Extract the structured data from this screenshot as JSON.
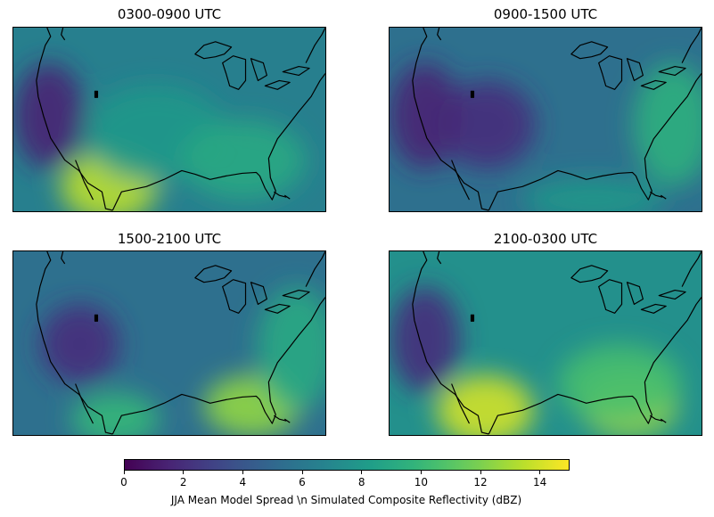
{
  "panels": [
    {
      "id": "p1",
      "title": "0300-0900 UTC",
      "base_level": 6.5,
      "hotspots": [
        {
          "region": "southwest-desert",
          "level": 13.5
        },
        {
          "region": "central-plains",
          "level": 8
        },
        {
          "region": "southeast",
          "level": 9
        },
        {
          "region": "pacific-northwest",
          "level": 1.5
        }
      ]
    },
    {
      "id": "p2",
      "title": "0900-1500 UTC",
      "base_level": 5.5,
      "hotspots": [
        {
          "region": "east-coast",
          "level": 9.5
        },
        {
          "region": "gulf",
          "level": 8
        },
        {
          "region": "rockies",
          "level": 2
        },
        {
          "region": "pacific-northwest",
          "level": 1.5
        }
      ]
    },
    {
      "id": "p3",
      "title": "1500-2100 UTC",
      "base_level": 5.5,
      "hotspots": [
        {
          "region": "florida-gulf",
          "level": 12.5
        },
        {
          "region": "east-coast",
          "level": 9
        },
        {
          "region": "great-basin",
          "level": 2
        },
        {
          "region": "mexico",
          "level": 10
        }
      ]
    },
    {
      "id": "p4",
      "title": "2100-0300 UTC",
      "base_level": 7.5,
      "hotspots": [
        {
          "region": "southwest-desert",
          "level": 14
        },
        {
          "region": "florida-gulf",
          "level": 13
        },
        {
          "region": "southeast",
          "level": 10.5
        },
        {
          "region": "pacific-northwest",
          "level": 2
        }
      ]
    }
  ],
  "colorbar": {
    "min": 0,
    "max": 15,
    "ticks": [
      "0",
      "2",
      "4",
      "6",
      "8",
      "10",
      "12",
      "14"
    ],
    "tick_values": [
      0,
      2,
      4,
      6,
      8,
      10,
      12,
      14
    ],
    "label": "JJA Mean Model Spread \\n Simulated Composite Reflectivity (dBZ)",
    "colormap": "viridis"
  }
}
